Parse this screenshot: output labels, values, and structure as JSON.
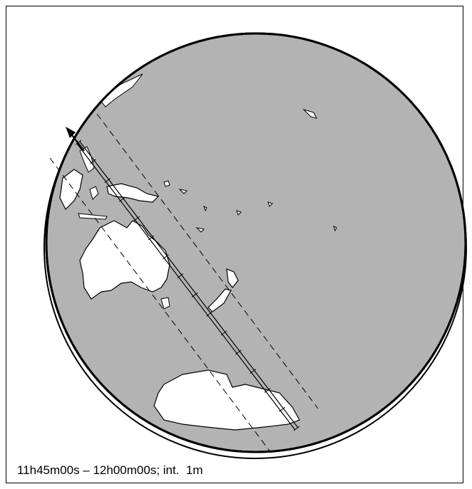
{
  "caption": "11h45m00s – 12h00m00s; int.  1m",
  "colors": {
    "ocean": "#b3b3b3",
    "land": "#ffffff",
    "outline": "#000000",
    "background": "#ffffff"
  },
  "map": {
    "projection": "orthographic",
    "region": "Western Pacific / Australia / Antarctica",
    "central_track_ticks": 15
  }
}
